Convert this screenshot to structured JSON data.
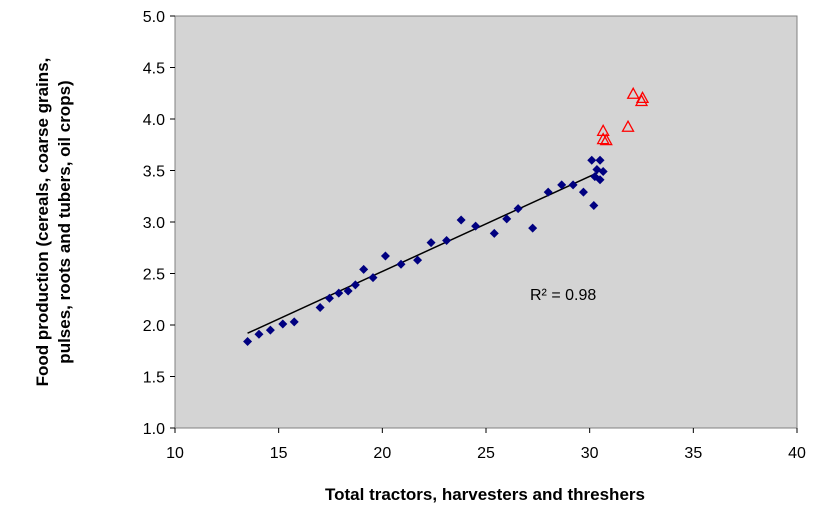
{
  "chart_data": {
    "type": "scatter",
    "x_label": "Total tractors,  harvesters  and threshers",
    "y_label": [
      "Food production (cereals, coarse grains,",
      "pulses, roots and tubers, oil crops)"
    ],
    "annotation": "R² = 0.98",
    "xlim": [
      10,
      40
    ],
    "xticks": [
      10,
      15,
      20,
      25,
      30,
      35,
      40
    ],
    "ylim": [
      1,
      5
    ],
    "yticks": [
      {
        "value": 1,
        "label": "1.0"
      },
      1.5,
      {
        "value": 2,
        "label": "2.0"
      },
      2.5,
      {
        "value": 3,
        "label": "3.0"
      },
      3.5,
      {
        "value": 4,
        "label": "4.0"
      },
      4.5,
      {
        "value": 5,
        "label": "5.0"
      }
    ],
    "series": [
      {
        "color": "#000080",
        "marker": "diamond",
        "x": [
          13.5,
          14.05,
          14.6,
          15.2,
          15.75,
          17.0,
          17.45,
          17.9,
          18.35,
          18.7,
          19.1,
          19.55,
          20.15,
          20.9,
          21.7,
          22.35,
          23.1,
          23.8,
          24.5,
          25.4,
          26.0,
          26.55,
          27.25,
          28.0,
          28.65,
          29.2,
          29.7,
          30.1,
          30.2,
          30.25,
          30.35,
          30.5,
          30.5,
          30.65
        ],
        "values": [
          1.84,
          1.91,
          1.95,
          2.01,
          2.03,
          2.17,
          2.26,
          2.31,
          2.33,
          2.39,
          2.54,
          2.46,
          2.67,
          2.59,
          2.63,
          2.8,
          2.82,
          3.02,
          2.96,
          2.89,
          3.03,
          3.13,
          2.94,
          3.29,
          3.36,
          3.36,
          3.29,
          3.6,
          3.16,
          3.44,
          3.51,
          3.6,
          3.41,
          3.49
        ]
      },
      {
        "color": "#ff0000",
        "marker": "triangle",
        "x": [
          30.65,
          30.65,
          30.8,
          31.85,
          32.1,
          32.5,
          32.55
        ],
        "values": [
          3.88,
          3.8,
          3.79,
          3.92,
          4.24,
          4.17,
          4.2
        ]
      }
    ],
    "trendline": {
      "color": "#000000",
      "x": [
        13.5,
        30.4
      ],
      "values": [
        1.92,
        3.48
      ]
    }
  }
}
